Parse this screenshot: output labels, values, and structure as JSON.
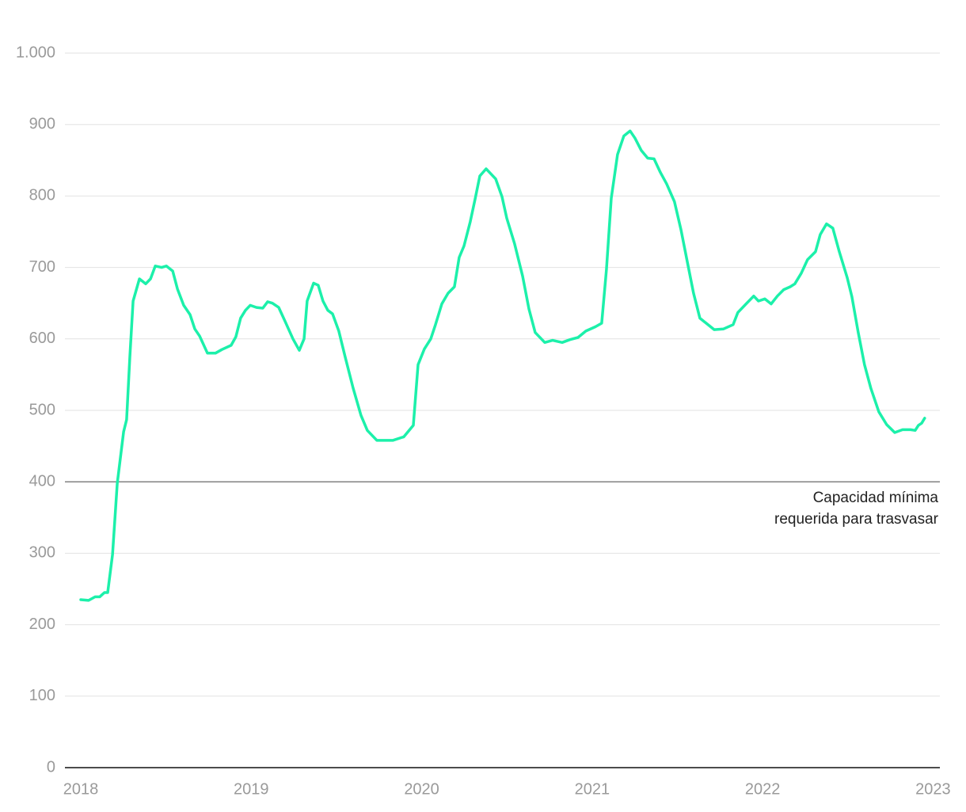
{
  "chart_data": {
    "type": "line",
    "x": [
      2018.0,
      2018.046,
      2018.084,
      2018.111,
      2018.139,
      2018.158,
      2018.186,
      2018.214,
      2018.251,
      2018.269,
      2018.288,
      2018.307,
      2018.344,
      2018.381,
      2018.409,
      2018.437,
      2018.474,
      2018.502,
      2018.539,
      2018.567,
      2018.604,
      2018.641,
      2018.669,
      2018.697,
      2018.743,
      2018.79,
      2018.827,
      2018.882,
      2018.91,
      2018.938,
      2018.966,
      2018.994,
      2019.031,
      2019.068,
      2019.096,
      2019.124,
      2019.161,
      2019.198,
      2019.245,
      2019.282,
      2019.31,
      2019.328,
      2019.366,
      2019.393,
      2019.421,
      2019.449,
      2019.477,
      2019.514,
      2019.551,
      2019.598,
      2019.644,
      2019.681,
      2019.737,
      2019.784,
      2019.83,
      2019.895,
      2019.951,
      2019.979,
      2020.016,
      2020.053,
      2020.081,
      2020.118,
      2020.155,
      2020.192,
      2020.22,
      2020.248,
      2020.285,
      2020.313,
      2020.341,
      2020.378,
      2020.434,
      2020.471,
      2020.499,
      2020.545,
      2020.592,
      2020.629,
      2020.666,
      2020.722,
      2020.768,
      2020.824,
      2020.87,
      2020.917,
      2020.963,
      2021.019,
      2021.056,
      2021.084,
      2021.112,
      2021.149,
      2021.186,
      2021.223,
      2021.251,
      2021.288,
      2021.326,
      2021.363,
      2021.4,
      2021.437,
      2021.483,
      2021.521,
      2021.558,
      2021.595,
      2021.632,
      2021.669,
      2021.716,
      2021.771,
      2021.827,
      2021.855,
      2021.911,
      2021.948,
      2021.976,
      2022.013,
      2022.05,
      2022.087,
      2022.124,
      2022.162,
      2022.189,
      2022.227,
      2022.264,
      2022.31,
      2022.338,
      2022.375,
      2022.412,
      2022.45,
      2022.496,
      2022.524,
      2022.561,
      2022.598,
      2022.635,
      2022.682,
      2022.728,
      2022.775,
      2022.821,
      2022.868,
      2022.895,
      2022.914,
      2022.933,
      2022.951
    ],
    "series": [
      {
        "color": "#1cf0aa",
        "values": [
          235,
          234,
          239,
          239,
          245,
          245,
          298,
          398,
          470,
          487,
          575,
          653,
          684,
          677,
          684,
          702,
          700,
          702,
          695,
          670,
          647,
          634,
          614,
          604,
          580,
          580,
          585,
          591,
          603,
          629,
          640,
          647,
          644,
          643,
          652,
          650,
          644,
          625,
          600,
          584,
          600,
          653,
          678,
          675,
          653,
          640,
          635,
          611,
          575,
          531,
          493,
          472,
          458,
          458,
          458,
          463,
          479,
          564,
          586,
          600,
          620,
          649,
          664,
          673,
          714,
          730,
          764,
          795,
          828,
          838,
          824,
          799,
          769,
          733,
          688,
          642,
          609,
          595,
          598,
          595,
          599,
          602,
          611,
          617,
          622,
          697,
          797,
          858,
          884,
          891,
          881,
          864,
          853,
          852,
          833,
          817,
          792,
          753,
          708,
          664,
          629,
          622,
          613,
          614,
          620,
          637,
          651,
          660,
          653,
          656,
          649,
          660,
          669,
          673,
          677,
          692,
          711,
          722,
          746,
          761,
          755,
          722,
          686,
          659,
          609,
          564,
          531,
          498,
          480,
          469,
          473,
          473,
          472,
          479,
          482,
          489
        ]
      }
    ],
    "xlim": [
      2017.907,
      2023.04
    ],
    "xticks": [
      2018,
      2019,
      2020,
      2021,
      2022,
      2023
    ],
    "ylim": [
      0,
      1000
    ],
    "yticks": [
      0,
      100,
      200,
      300,
      400,
      500,
      600,
      700,
      800,
      900,
      {
        "value": 1000,
        "label": "1.000"
      }
    ],
    "grid": true,
    "reference_line": {
      "value": 400,
      "label": [
        "Capacidad mínima",
        "requerida para trasvasar"
      ]
    }
  }
}
